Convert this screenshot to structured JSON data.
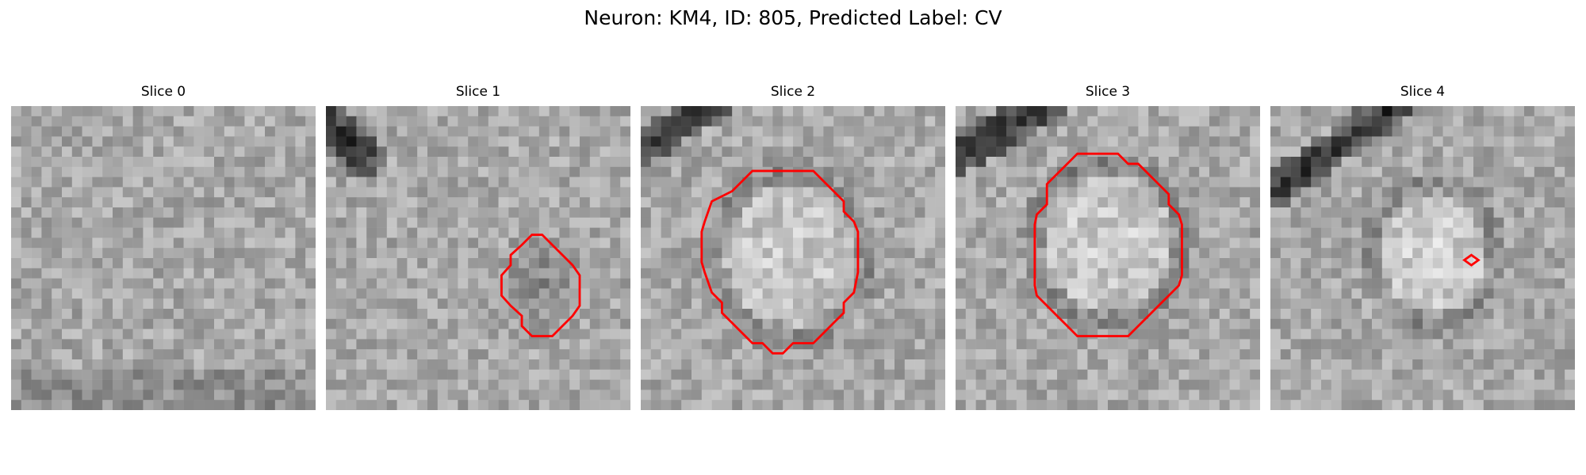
{
  "figure": {
    "title": "Neuron: KM4, ID: 805, Predicted Label: CV"
  },
  "panels": [
    {
      "title": "Slice 0",
      "contour": [],
      "blob": null,
      "dark_band": null
    },
    {
      "title": "Slice 1",
      "contour": [
        [
          19.3,
          13.7
        ],
        [
          18.2,
          14.7
        ],
        [
          18.2,
          15.7
        ],
        [
          17.3,
          16.7
        ],
        [
          17.3,
          18.7
        ],
        [
          18.2,
          19.7
        ],
        [
          19.3,
          20.7
        ],
        [
          19.3,
          21.7
        ],
        [
          20.3,
          22.7
        ],
        [
          21.3,
          22.7
        ],
        [
          22.3,
          22.7
        ],
        [
          23.3,
          21.7
        ],
        [
          24.3,
          20.7
        ],
        [
          25.0,
          19.7
        ],
        [
          25.0,
          16.7
        ],
        [
          24.3,
          15.7
        ],
        [
          23.3,
          14.7
        ],
        [
          22.3,
          13.7
        ],
        [
          21.3,
          12.7
        ],
        [
          20.3,
          12.7
        ]
      ],
      "blob": {
        "cx": 21.0,
        "cy": 17.6,
        "rx": 4.2,
        "ry": 4.7,
        "delta": -35
      },
      "dark_band": {
        "x1": -1,
        "y1": 0.5,
        "x2": 3.5,
        "y2": 4.8,
        "w": 4.5
      }
    },
    {
      "title": "Slice 2",
      "contour": [
        [
          10.0,
          7.4
        ],
        [
          9.0,
          8.4
        ],
        [
          7.0,
          9.4
        ],
        [
          6.3,
          11.4
        ],
        [
          6.0,
          12.4
        ],
        [
          6.0,
          15.4
        ],
        [
          6.3,
          16.4
        ],
        [
          7.0,
          18.4
        ],
        [
          8.0,
          19.4
        ],
        [
          8.0,
          20.4
        ],
        [
          9.0,
          21.4
        ],
        [
          10.0,
          22.4
        ],
        [
          11.0,
          23.4
        ],
        [
          12.0,
          23.4
        ],
        [
          13.0,
          24.4
        ],
        [
          14.0,
          24.4
        ],
        [
          15.0,
          23.4
        ],
        [
          16.0,
          23.4
        ],
        [
          17.0,
          23.4
        ],
        [
          18.0,
          22.4
        ],
        [
          19.0,
          21.4
        ],
        [
          20.0,
          20.4
        ],
        [
          20.0,
          19.4
        ],
        [
          21.0,
          18.4
        ],
        [
          21.4,
          16.4
        ],
        [
          21.4,
          12.4
        ],
        [
          21.0,
          11.4
        ],
        [
          20.0,
          10.4
        ],
        [
          20.0,
          9.4
        ],
        [
          19.0,
          8.4
        ],
        [
          18.0,
          7.4
        ],
        [
          17.0,
          6.4
        ],
        [
          11.0,
          6.4
        ]
      ],
      "blob": {
        "cx": 14.7,
        "cy": 14.8,
        "rx": 6.3,
        "ry": 6.8,
        "delta": 38
      },
      "dark_band": {
        "x1": -1,
        "y1": 4.8,
        "x2": 7.5,
        "y2": -0.5,
        "w": 3.5
      }
    },
    {
      "title": "Slice 3",
      "contour": [
        [
          9.0,
          9.7
        ],
        [
          8.0,
          10.7
        ],
        [
          7.8,
          11.7
        ],
        [
          7.8,
          17.7
        ],
        [
          8.0,
          18.7
        ],
        [
          9.0,
          19.7
        ],
        [
          10.0,
          20.7
        ],
        [
          11.0,
          21.7
        ],
        [
          12.0,
          22.7
        ],
        [
          13.0,
          22.7
        ],
        [
          17.0,
          22.7
        ],
        [
          18.0,
          21.7
        ],
        [
          19.0,
          20.7
        ],
        [
          20.0,
          19.7
        ],
        [
          21.0,
          18.7
        ],
        [
          22.0,
          17.7
        ],
        [
          22.3,
          16.7
        ],
        [
          22.3,
          11.7
        ],
        [
          22.0,
          10.7
        ],
        [
          21.0,
          9.7
        ],
        [
          21.0,
          8.7
        ],
        [
          20.0,
          7.7
        ],
        [
          19.0,
          6.7
        ],
        [
          18.0,
          5.7
        ],
        [
          17.0,
          5.7
        ],
        [
          16.0,
          4.7
        ],
        [
          12.0,
          4.7
        ],
        [
          11.0,
          5.7
        ],
        [
          10.0,
          6.7
        ],
        [
          9.0,
          7.7
        ]
      ],
      "blob": {
        "cx": 15.0,
        "cy": 13.5,
        "rx": 6.2,
        "ry": 6.6,
        "delta": 40
      },
      "dark_band": {
        "x1": -1,
        "y1": 5.5,
        "x2": 9.5,
        "y2": -0.5,
        "w": 4.0
      }
    },
    {
      "title": "Slice 4",
      "contour": [
        [
          19.8,
          14.7
        ],
        [
          20.5,
          15.2
        ],
        [
          19.8,
          15.7
        ],
        [
          19.1,
          15.2
        ]
      ],
      "blob": {
        "cx": 16.0,
        "cy": 14.5,
        "rx": 5.2,
        "ry": 5.8,
        "delta": 45
      },
      "dark_band": {
        "x1": -1,
        "y1": 9.2,
        "x2": 13.0,
        "y2": -0.5,
        "w": 3.5
      }
    }
  ]
}
